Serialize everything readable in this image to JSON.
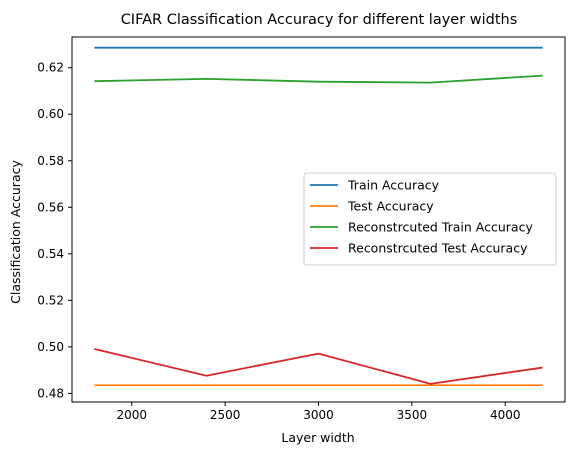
{
  "chart_data": {
    "type": "line",
    "title": "CIFAR Classification Accuracy for different layer widths",
    "xlabel": "Layer width",
    "ylabel": "Classification Accuracy",
    "xlim": [
      1680,
      4320
    ],
    "ylim": [
      0.4763,
      0.6332
    ],
    "xticks": [
      2000,
      2500,
      3000,
      3500,
      4000
    ],
    "yticks": [
      0.48,
      0.5,
      0.52,
      0.54,
      0.56,
      0.58,
      0.6,
      0.62
    ],
    "x": [
      1800,
      2400,
      3000,
      3600,
      4200
    ],
    "legend_position": "center-right",
    "series": [
      {
        "name": "Train Accuracy",
        "color": "#1f77b4",
        "values": [
          0.6286,
          0.6286,
          0.6286,
          0.6286,
          0.6286
        ]
      },
      {
        "name": "Test Accuracy",
        "color": "#ff7f0e",
        "values": [
          0.4835,
          0.4835,
          0.4835,
          0.4835,
          0.4835
        ]
      },
      {
        "name": "Reconstrcuted Train Accuracy",
        "color": "#2ca02c",
        "values": [
          0.6142,
          0.6152,
          0.614,
          0.6136,
          0.6166
        ]
      },
      {
        "name": "Reconstrcuted Test Accuracy",
        "color": "#d62728",
        "values": [
          0.4991,
          0.4876,
          0.4971,
          0.4841,
          0.4911
        ]
      }
    ]
  }
}
